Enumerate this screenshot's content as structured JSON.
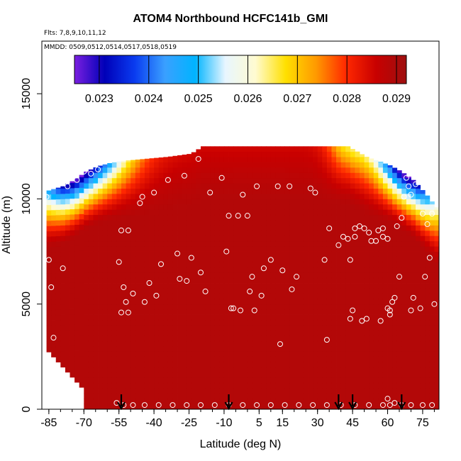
{
  "chart_data": {
    "type": "heatmap",
    "title": "ATOM4 Northbound HCFC141b_GMI",
    "subtitle_flights": "Flts: 7,8,9,10,11,12",
    "subtitle_dates": "MMDD: 0509,0512,0514,0517,0518,0519",
    "xlabel": "Latitude (deg N)",
    "ylabel": "Altitude (m)",
    "xlim": [
      -88,
      82
    ],
    "ylim": [
      0,
      17500
    ],
    "x_ticks": [
      -85,
      -70,
      -55,
      -40,
      -25,
      -10,
      5,
      15,
      30,
      45,
      60,
      75
    ],
    "y_ticks": [
      0,
      5000,
      10000,
      15000
    ],
    "colorbar": {
      "min": 0.0225,
      "max": 0.0292,
      "tick_values": [
        0.023,
        0.024,
        0.025,
        0.026,
        0.027,
        0.028,
        0.029
      ],
      "tick_labels": [
        "0.023",
        "0.024",
        "0.025",
        "0.026",
        "0.027",
        "0.028",
        "0.029"
      ],
      "colors": [
        "#7b1fe0",
        "#0000b8",
        "#0a3cf0",
        "#3aa0ff",
        "#00b4ff",
        "#e8f6ff",
        "#fffbd0",
        "#ffe000",
        "#ff9a00",
        "#ff2800",
        "#c80000",
        "#9e1010"
      ]
    },
    "field_top_profile": [
      [
        -86,
        10400
      ],
      [
        -80,
        10600
      ],
      [
        -75,
        10900
      ],
      [
        -70,
        11300
      ],
      [
        -65,
        11550
      ],
      [
        -60,
        11700
      ],
      [
        -55,
        11800
      ],
      [
        -45,
        11900
      ],
      [
        -35,
        12000
      ],
      [
        -25,
        12150
      ],
      [
        -20,
        12500
      ],
      [
        36,
        12500
      ],
      [
        42,
        12500
      ],
      [
        50,
        12000
      ],
      [
        55,
        11800
      ],
      [
        60,
        11600
      ],
      [
        65,
        11300
      ],
      [
        70,
        10900
      ],
      [
        75,
        10300
      ],
      [
        80,
        9600
      ]
    ],
    "flight_arrow_latitudes": [
      -54,
      -8,
      39,
      45,
      66
    ],
    "sample_points": [
      [
        -86,
        10100
      ],
      [
        -85,
        7100
      ],
      [
        -84,
        5800
      ],
      [
        -83,
        3400
      ],
      [
        -79,
        6700
      ],
      [
        -80,
        1400
      ],
      [
        -77,
        10600
      ],
      [
        -73,
        10900
      ],
      [
        -70,
        11300
      ],
      [
        -67,
        11200
      ],
      [
        -64,
        11400
      ],
      [
        -55,
        7000
      ],
      [
        -54,
        8500
      ],
      [
        -51,
        8500
      ],
      [
        -54,
        4600
      ],
      [
        -51,
        4600
      ],
      [
        -52,
        5100
      ],
      [
        -53,
        5800
      ],
      [
        -49,
        5500
      ],
      [
        -46,
        9800
      ],
      [
        -45,
        10100
      ],
      [
        -44,
        5100
      ],
      [
        -42,
        6000
      ],
      [
        -40,
        10300
      ],
      [
        -39,
        5400
      ],
      [
        -37,
        6900
      ],
      [
        -34,
        10900
      ],
      [
        -30,
        7400
      ],
      [
        -29,
        6200
      ],
      [
        -27,
        11100
      ],
      [
        -26,
        6100
      ],
      [
        -24,
        7200
      ],
      [
        -21,
        11900
      ],
      [
        -20,
        6500
      ],
      [
        -18,
        5600
      ],
      [
        -16,
        10300
      ],
      [
        -11,
        11000
      ],
      [
        -9,
        7500
      ],
      [
        -8,
        9200
      ],
      [
        -7,
        4800
      ],
      [
        -6,
        4800
      ],
      [
        -4,
        9200
      ],
      [
        -3,
        4700
      ],
      [
        -2,
        10200
      ],
      [
        0,
        9200
      ],
      [
        1,
        5600
      ],
      [
        2,
        6300
      ],
      [
        3,
        4700
      ],
      [
        4,
        10600
      ],
      [
        6,
        5400
      ],
      [
        7,
        6700
      ],
      [
        10,
        7100
      ],
      [
        13,
        10600
      ],
      [
        14,
        3100
      ],
      [
        15,
        6600
      ],
      [
        18,
        10600
      ],
      [
        19,
        5700
      ],
      [
        21,
        6300
      ],
      [
        27,
        10500
      ],
      [
        29,
        10300
      ],
      [
        33,
        7100
      ],
      [
        34,
        3300
      ],
      [
        35,
        8600
      ],
      [
        39,
        7800
      ],
      [
        41,
        8200
      ],
      [
        43,
        8100
      ],
      [
        44,
        4300
      ],
      [
        44,
        7100
      ],
      [
        45,
        4700
      ],
      [
        46,
        8600
      ],
      [
        46,
        8200
      ],
      [
        48,
        8700
      ],
      [
        49,
        4200
      ],
      [
        50,
        8600
      ],
      [
        51,
        4300
      ],
      [
        52,
        8400
      ],
      [
        53,
        8000
      ],
      [
        55,
        8000
      ],
      [
        56,
        8500
      ],
      [
        57,
        4200
      ],
      [
        58,
        8600
      ],
      [
        58,
        8200
      ],
      [
        60,
        8100
      ],
      [
        60,
        4800
      ],
      [
        61,
        4500
      ],
      [
        61,
        4700
      ],
      [
        62,
        5100
      ],
      [
        63,
        5300
      ],
      [
        64,
        8700
      ],
      [
        65,
        6300
      ],
      [
        66,
        9100
      ],
      [
        67,
        10100
      ],
      [
        68,
        11000
      ],
      [
        69,
        10600
      ],
      [
        70,
        10200
      ],
      [
        70,
        4700
      ],
      [
        71,
        5300
      ],
      [
        72,
        10700
      ],
      [
        73,
        11000
      ],
      [
        74,
        4800
      ],
      [
        75,
        9300
      ],
      [
        76,
        6300
      ],
      [
        77,
        8800
      ],
      [
        78,
        7200
      ],
      [
        79,
        9300
      ],
      [
        80,
        5000
      ],
      [
        -56,
        300
      ],
      [
        -53,
        200
      ],
      [
        -49,
        200
      ],
      [
        -44,
        200
      ],
      [
        -38,
        200
      ],
      [
        -32,
        200
      ],
      [
        -26,
        200
      ],
      [
        -20,
        200
      ],
      [
        -14,
        200
      ],
      [
        -8,
        200
      ],
      [
        -2,
        200
      ],
      [
        4,
        200
      ],
      [
        10,
        200
      ],
      [
        16,
        200
      ],
      [
        22,
        200
      ],
      [
        28,
        200
      ],
      [
        34,
        200
      ],
      [
        40,
        200
      ],
      [
        46,
        200
      ],
      [
        52,
        200
      ],
      [
        58,
        200
      ],
      [
        60,
        500
      ],
      [
        61,
        200
      ],
      [
        63,
        300
      ],
      [
        66,
        200
      ],
      [
        70,
        200
      ],
      [
        75,
        200
      ],
      [
        79,
        200
      ]
    ]
  }
}
